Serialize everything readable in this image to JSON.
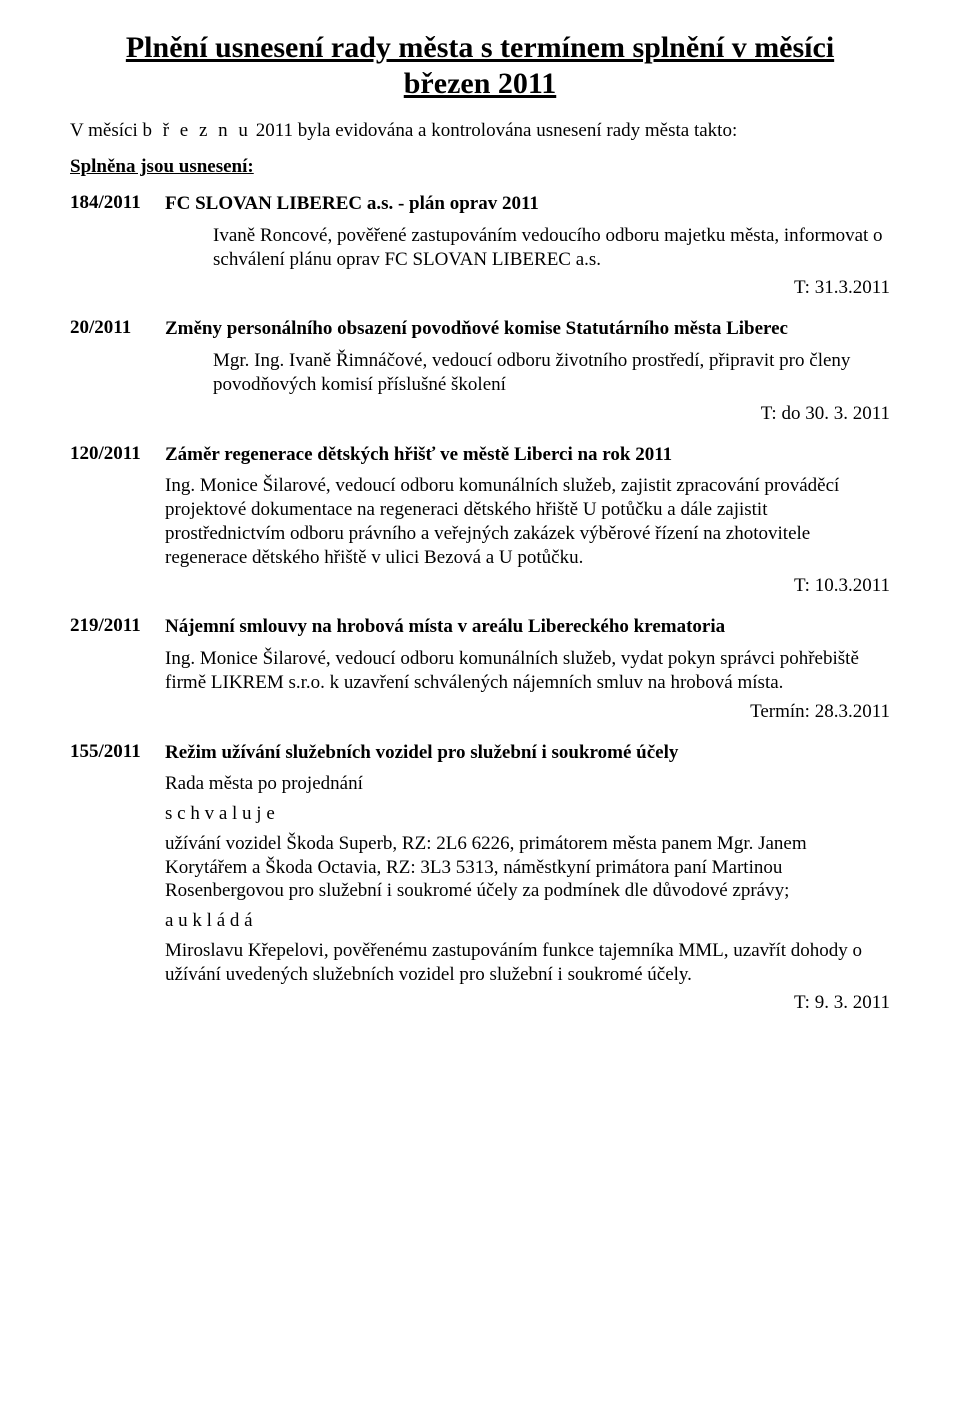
{
  "title_line1": "Plnění usnesení rady města s termínem splnění v měsíci",
  "title_line2": "březen 2011",
  "intro_prefix": "V měsíci ",
  "intro_month": "b ř e z n u",
  "intro_suffix": " 2011 byla evidována a kontrolována usnesení rady města takto:",
  "subhead": "Splněna jsou usnesení:",
  "items": [
    {
      "num": "184/2011",
      "title": "FC SLOVAN LIBEREC a.s. - plán oprav 2011",
      "text": "Ivaně Roncové, pověřené zastupováním vedoucího odboru majetku města, informovat o schválení plánu oprav FC SLOVAN LIBEREC a.s.",
      "deadline": "T: 31.3.2011"
    },
    {
      "num": "20/2011",
      "title": "Změny personálního obsazení povodňové komise Statutárního města Liberec",
      "text": "Mgr. Ing. Ivaně Řimnáčové, vedoucí odboru životního prostředí, připravit pro členy povodňových komisí příslušné školení",
      "deadline": "T: do 30. 3. 2011"
    },
    {
      "num": "120/2011",
      "title": "Záměr regenerace dětských hřišť ve městě Liberci na rok 2011",
      "text": "Ing. Monice Šilarové, vedoucí odboru komunálních služeb, zajistit zpracování prováděcí projektové dokumentace na regeneraci dětského hřiště U potůčku a dále zajistit prostřednictvím odboru právního a veřejných zakázek výběrové řízení na zhotovitele regenerace dětského hřiště v ulici Bezová a U potůčku.",
      "deadline": "T: 10.3.2011"
    },
    {
      "num": "219/2011",
      "title": "Nájemní smlouvy na hrobová místa v areálu Libereckého krematoria",
      "text": "Ing. Monice Šilarové, vedoucí odboru komunálních služeb, vydat pokyn správci pohřebiště firmě LIKREM s.r.o. k uzavření schválených nájemních smluv na hrobová místa.",
      "deadline": "Termín: 28.3.2011"
    },
    {
      "num": "155/2011",
      "title": "Režim užívání služebních vozidel pro služební i soukromé účely",
      "lines": [
        {
          "text": "Rada města po projednání",
          "cls": ""
        },
        {
          "text": "s c h v a l u j e",
          "cls": ""
        },
        {
          "text": "užívání vozidel Škoda Superb, RZ: 2L6 6226, primátorem města panem Mgr. Janem Korytářem a Škoda Octavia, RZ: 3L3 5313, náměstkyní primátora paní Martinou Rosenbergovou pro služební i soukromé účely za podmínek dle důvodové zprávy;",
          "cls": ""
        },
        {
          "text": "a   u k l á d á",
          "cls": ""
        },
        {
          "text": "Miroslavu Křepelovi, pověřenému zastupováním funkce tajemníka MML, uzavřít dohody o užívání uvedených služebních vozidel pro služební i soukromé účely.",
          "cls": ""
        }
      ],
      "deadline": "T: 9. 3. 2011"
    }
  ]
}
